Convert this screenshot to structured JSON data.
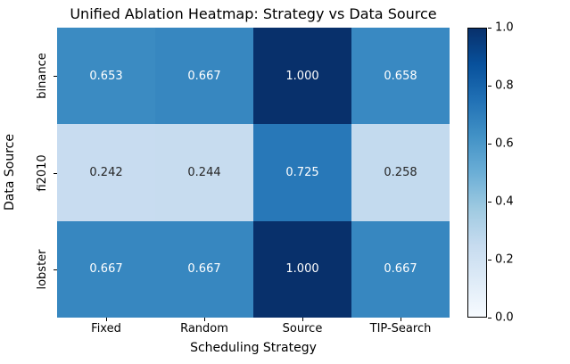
{
  "chart_data": {
    "type": "heatmap",
    "title": "Unified Ablation Heatmap: Strategy vs Data Source",
    "xlabel": "Scheduling Strategy",
    "ylabel": "Data Source",
    "categories": [
      "Fixed",
      "Random",
      "Source",
      "TIP-Search"
    ],
    "rows": [
      "binance",
      "fi2010",
      "lobster"
    ],
    "values": [
      [
        0.653,
        0.667,
        1.0,
        0.658
      ],
      [
        0.242,
        0.244,
        0.725,
        0.258
      ],
      [
        0.667,
        0.667,
        1.0,
        0.667
      ]
    ],
    "value_labels": [
      [
        "0.653",
        "0.667",
        "1.000",
        "0.658"
      ],
      [
        "0.242",
        "0.244",
        "0.725",
        "0.258"
      ],
      [
        "0.667",
        "0.667",
        "1.000",
        "0.667"
      ]
    ],
    "colormap": "Blues",
    "colormap_stops": [
      "#f7fbff",
      "#deebf7",
      "#c6dbef",
      "#9ecae1",
      "#6baed6",
      "#4292c6",
      "#2171b5",
      "#08519c",
      "#08306b"
    ],
    "annotation_dark_text_color": "#262626",
    "annotation_light_text_color": "#ffffff",
    "colorbar": {
      "min": 0.0,
      "max": 1.0,
      "tick_labels": [
        "0.0",
        "0.2",
        "0.4",
        "0.6",
        "0.8",
        "1.0"
      ],
      "position": "right"
    },
    "grid": false,
    "legend": "colorbar-right"
  }
}
